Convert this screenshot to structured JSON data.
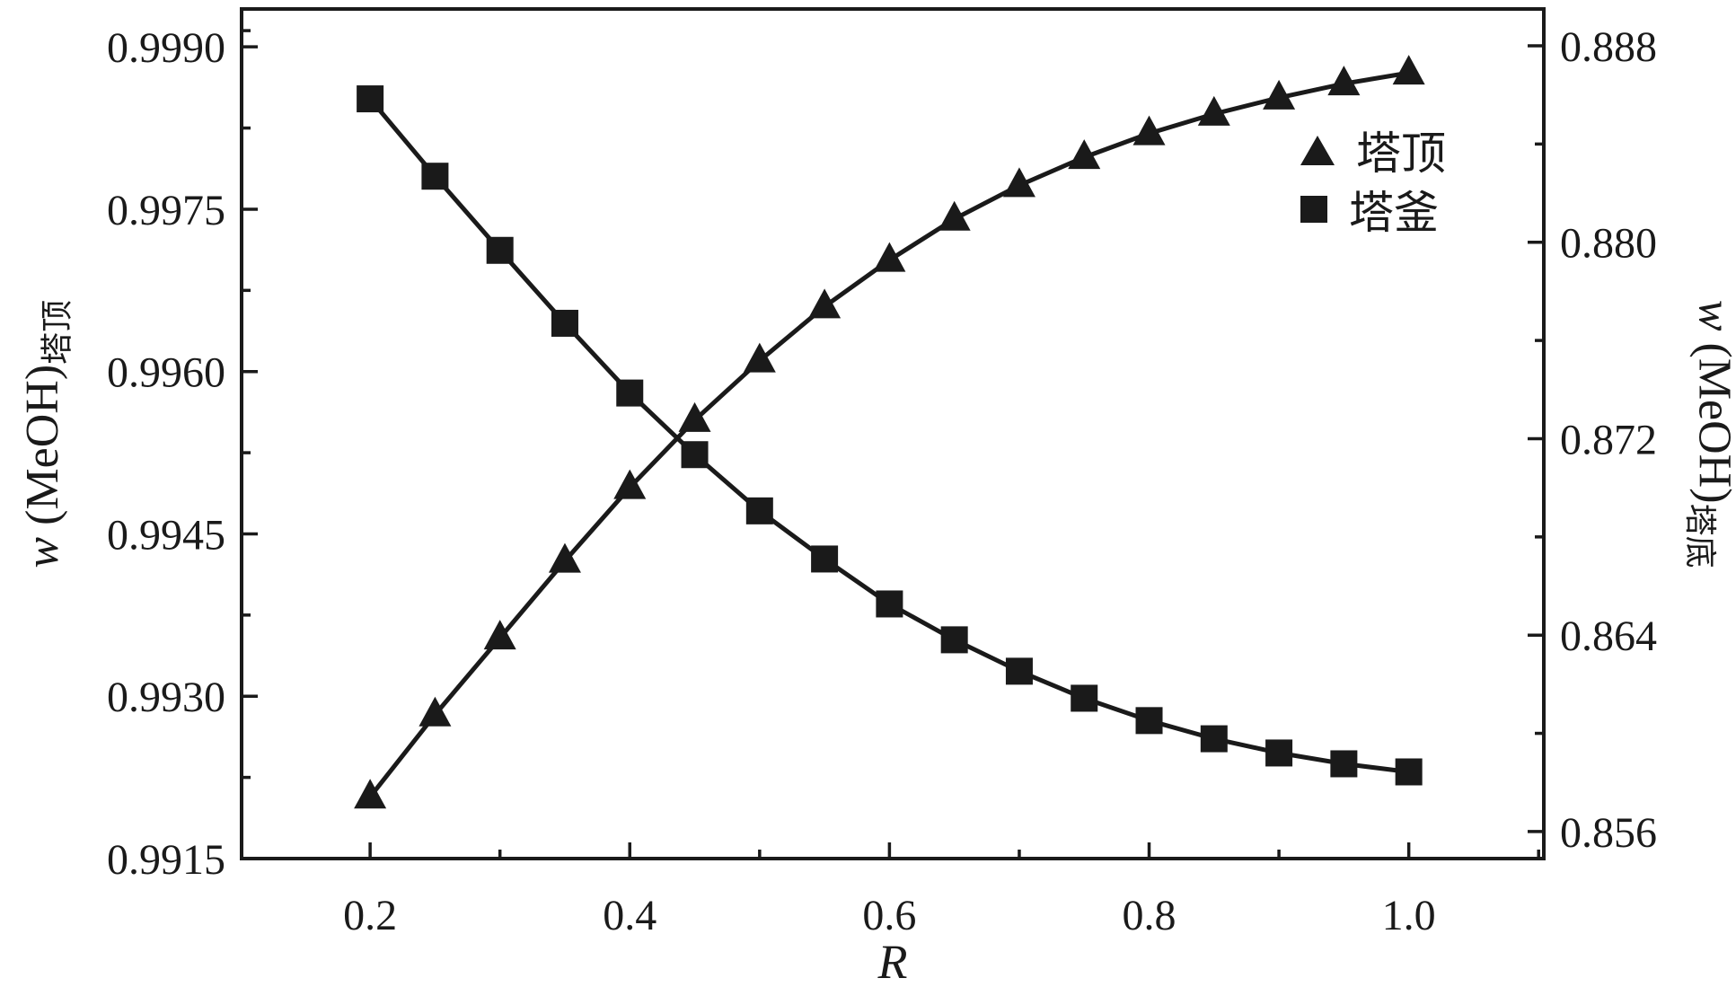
{
  "figure": {
    "background": "#ffffff",
    "frame_color": "#1a1a1a",
    "text_color": "#1a1a1a"
  },
  "chart_data": {
    "type": "line",
    "title": "",
    "x_axis": {
      "label": "R",
      "min": 0.101,
      "max": 1.104,
      "ticks": [
        0.2,
        0.4,
        0.6,
        0.8,
        1.0
      ],
      "tick_labels": [
        "0.2",
        "0.4",
        "0.6",
        "0.8",
        "1.0"
      ],
      "minor_ticks": [
        0.3,
        0.5,
        0.7,
        0.9,
        1.1
      ]
    },
    "left_axis": {
      "label_w": "w",
      "label_rest": " (MeOH)",
      "label_sub": "塔顶",
      "min": 0.9915,
      "max": 0.99935,
      "ticks": [
        0.9915,
        0.993,
        0.9945,
        0.996,
        0.9975,
        0.999
      ],
      "tick_labels": [
        "0.9915",
        "0.9930",
        "0.9945",
        "0.9960",
        "0.9975",
        "0.9990"
      ],
      "minor_ticks": [
        0.99225,
        0.99375,
        0.99525,
        0.99675,
        0.99825,
        0.99915
      ]
    },
    "right_axis": {
      "label_w": "w",
      "label_rest": " (MeOH)",
      "label_sub": "塔底",
      "min": 0.8549,
      "max": 0.8895,
      "ticks": [
        0.856,
        0.864,
        0.872,
        0.88,
        0.888
      ],
      "tick_labels": [
        "0.856",
        "0.864",
        "0.872",
        "0.880",
        "0.888"
      ],
      "minor_ticks": [
        0.86,
        0.868,
        0.876,
        0.884
      ]
    },
    "x": [
      0.2,
      0.25,
      0.3,
      0.35,
      0.4,
      0.45,
      0.5,
      0.55,
      0.6,
      0.65,
      0.7,
      0.75,
      0.8,
      0.85,
      0.9,
      0.95,
      1.0
    ],
    "series": [
      {
        "name": "塔顶",
        "axis": "left",
        "marker": "triangle",
        "color": "#1a1a1a",
        "values": [
          0.99207,
          0.99283,
          0.99354,
          0.99425,
          0.99493,
          0.99555,
          0.9961,
          0.9966,
          0.99703,
          0.99741,
          0.99772,
          0.99798,
          0.9982,
          0.99838,
          0.99853,
          0.99866,
          0.99876
        ]
      },
      {
        "name": "塔釜",
        "axis": "right",
        "marker": "square",
        "color": "#1a1a1a",
        "values": [
          0.88584,
          0.88269,
          0.87967,
          0.8767,
          0.87386,
          0.87135,
          0.86906,
          0.8671,
          0.86527,
          0.86381,
          0.86253,
          0.86143,
          0.86052,
          0.85978,
          0.8592,
          0.85876,
          0.85843
        ]
      }
    ],
    "legend": {
      "position": "upper-right-inside",
      "frame": false
    }
  }
}
